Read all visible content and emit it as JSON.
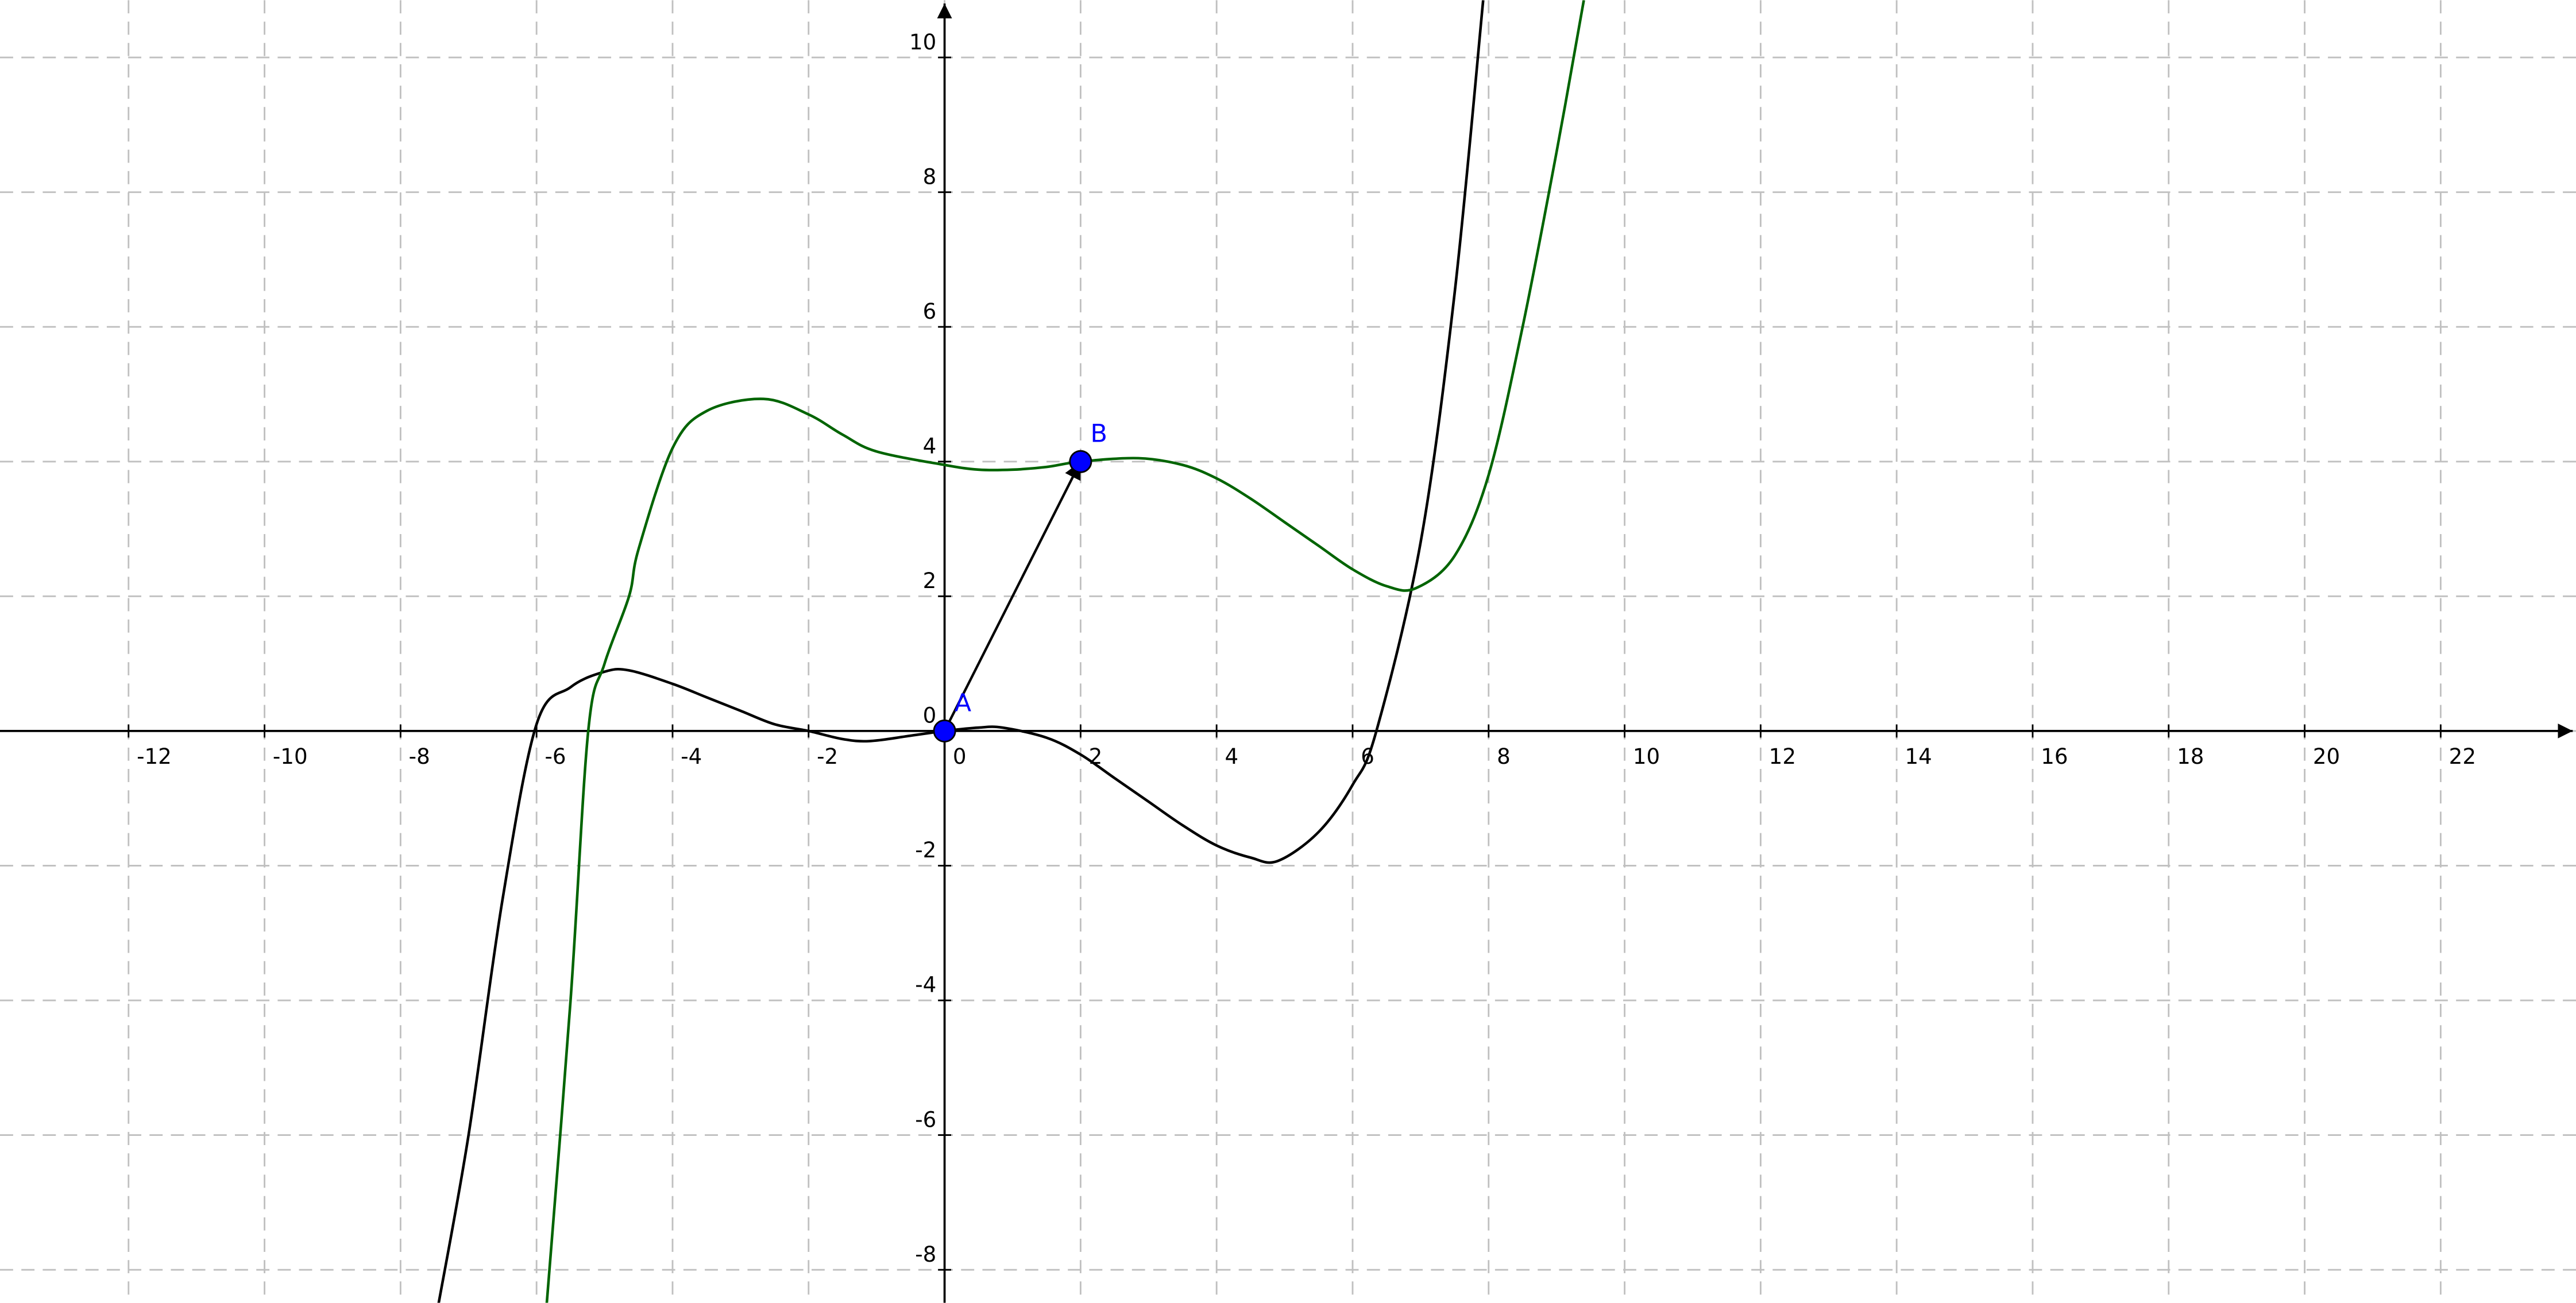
{
  "chart_data": {
    "type": "line",
    "xlim": [
      -13.89,
      23.99
    ],
    "ylim": [
      -8.49,
      10.85
    ],
    "xticks": [
      -12,
      -10,
      -8,
      -6,
      -4,
      -2,
      0,
      2,
      4,
      6,
      8,
      10,
      12,
      14,
      16,
      18,
      20,
      22
    ],
    "yticks": [
      -8,
      -6,
      -4,
      -2,
      0,
      2,
      4,
      6,
      8,
      10
    ],
    "grid": true,
    "series": [
      {
        "color": "#000000",
        "x": [
          -7.44,
          -7,
          -6.5,
          -6,
          -5.5,
          -5,
          -4.64,
          -4,
          -3.5,
          -3,
          -2.5,
          -2,
          -1.5,
          -1.1,
          -0.5,
          0,
          0.5,
          0.85,
          1.5,
          2,
          2.5,
          3,
          3.5,
          4,
          4.5,
          4.9,
          5.5,
          6,
          6.35,
          7,
          7.5,
          7.92
        ],
        "values": [
          -8.5,
          -6,
          -2.5,
          0.1,
          0.65,
          0.88,
          0.9,
          0.7,
          0.5,
          0.3,
          0.1,
          0,
          -0.12,
          -0.15,
          -0.07,
          0,
          0.05,
          0.05,
          -0.1,
          -0.35,
          -0.7,
          -1.05,
          -1.4,
          -1.7,
          -1.88,
          -1.93,
          -1.5,
          -0.8,
          0,
          2.8,
          6.5,
          10.85
        ]
      },
      {
        "color": "#006400",
        "x": [
          -5.85,
          -5.5,
          -5.24,
          -5,
          -4.64,
          -4.5,
          -4,
          -3.5,
          -2.66,
          -2,
          -1.5,
          -1,
          0,
          0.5,
          1,
          1.5,
          2,
          2.85,
          3.5,
          4,
          4.5,
          5,
          5.5,
          6,
          6.5,
          6.93,
          7.5,
          8,
          8.5,
          9,
          9.4
        ],
        "values": [
          -8.5,
          -4,
          0,
          1,
          2,
          2.7,
          4.2,
          4.75,
          4.93,
          4.7,
          4.4,
          4.15,
          3.95,
          3.88,
          3.88,
          3.92,
          4,
          4.05,
          3.95,
          3.75,
          3.45,
          3.1,
          2.75,
          2.4,
          2.15,
          2.12,
          2.6,
          3.8,
          6,
          8.6,
          10.85
        ]
      }
    ],
    "points": [
      {
        "label": "A",
        "x": 0,
        "y": 0,
        "color": "#0000ff"
      },
      {
        "label": "B",
        "x": 2,
        "y": 4,
        "color": "#0000ff"
      }
    ]
  }
}
